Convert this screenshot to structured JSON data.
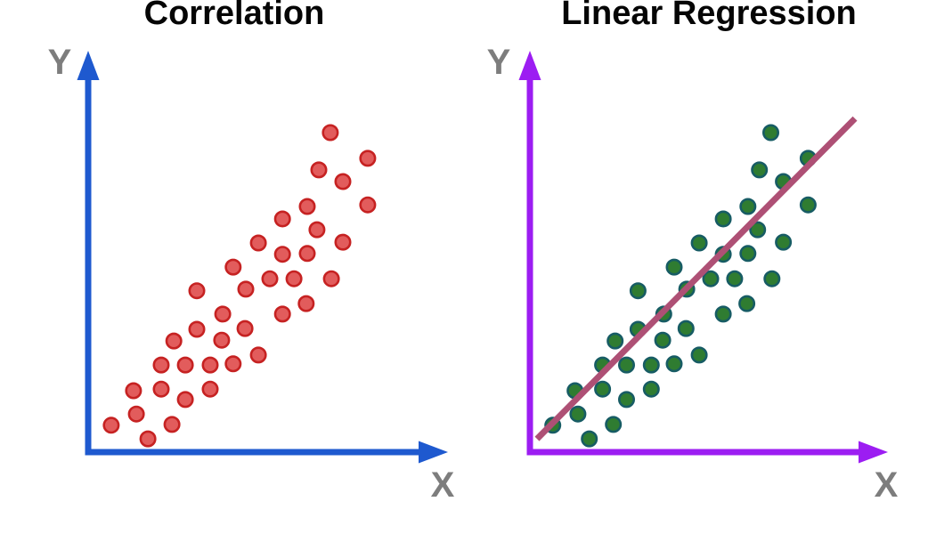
{
  "page": {
    "background_color": "#ffffff",
    "title_color": "#050505",
    "axis_label_color": "#7d7d7d"
  },
  "chart_data": [
    {
      "type": "scatter",
      "title": "Correlation",
      "xlabel": "X",
      "ylabel": "Y",
      "axis_ticks": "none",
      "units": "arbitrary 0-100 (axes have no tick labels)",
      "xlim": [
        0,
        100
      ],
      "ylim": [
        0,
        100
      ],
      "grid": false,
      "legend": "none",
      "colors": {
        "axis": "#1e59cf",
        "point_fill": "#e25c5c",
        "point_stroke": "#c62222",
        "label": "#7d7d7d"
      },
      "points": [
        [
          67.3,
          79.6
        ],
        [
          77.7,
          73.2
        ],
        [
          64.1,
          70.3
        ],
        [
          70.8,
          67.4
        ],
        [
          77.7,
          61.6
        ],
        [
          60.9,
          61.2
        ],
        [
          54.0,
          58.1
        ],
        [
          63.6,
          55.4
        ],
        [
          70.8,
          52.3
        ],
        [
          47.3,
          52.1
        ],
        [
          54.0,
          49.3
        ],
        [
          60.9,
          49.5
        ],
        [
          40.3,
          46.1
        ],
        [
          50.5,
          43.2
        ],
        [
          57.2,
          43.2
        ],
        [
          67.6,
          43.2
        ],
        [
          30.2,
          40.2
        ],
        [
          43.8,
          40.6
        ],
        [
          60.6,
          37.0
        ],
        [
          37.4,
          34.4
        ],
        [
          54.0,
          34.4
        ],
        [
          30.2,
          30.6
        ],
        [
          43.6,
          30.8
        ],
        [
          37.1,
          27.9
        ],
        [
          23.8,
          27.7
        ],
        [
          47.3,
          24.2
        ],
        [
          20.3,
          21.7
        ],
        [
          27.0,
          21.7
        ],
        [
          33.9,
          21.7
        ],
        [
          40.3,
          22.0
        ],
        [
          12.6,
          15.3
        ],
        [
          20.3,
          15.7
        ],
        [
          33.9,
          15.7
        ],
        [
          27.0,
          13.1
        ],
        [
          13.4,
          9.5
        ],
        [
          6.4,
          6.7
        ],
        [
          23.3,
          6.9
        ],
        [
          16.6,
          3.3
        ]
      ]
    },
    {
      "type": "scatter",
      "title": "Linear Regression",
      "xlabel": "X",
      "ylabel": "Y",
      "axis_ticks": "none",
      "units": "arbitrary 0-100 (axes have no tick labels)",
      "xlim": [
        0,
        100
      ],
      "ylim": [
        0,
        100
      ],
      "grid": false,
      "legend": "none",
      "colors": {
        "axis": "#9c1df2",
        "point_fill": "#2f7c31",
        "point_stroke": "#175c64",
        "label": "#7d7d7d"
      },
      "points": [
        [
          67.3,
          79.6
        ],
        [
          77.7,
          73.2
        ],
        [
          64.1,
          70.3
        ],
        [
          70.8,
          67.4
        ],
        [
          77.7,
          61.6
        ],
        [
          60.9,
          61.2
        ],
        [
          54.0,
          58.1
        ],
        [
          63.6,
          55.4
        ],
        [
          70.8,
          52.3
        ],
        [
          47.3,
          52.1
        ],
        [
          54.0,
          49.3
        ],
        [
          60.9,
          49.5
        ],
        [
          40.3,
          46.1
        ],
        [
          50.5,
          43.2
        ],
        [
          57.2,
          43.2
        ],
        [
          67.6,
          43.2
        ],
        [
          30.2,
          40.2
        ],
        [
          43.8,
          40.6
        ],
        [
          60.6,
          37.0
        ],
        [
          37.4,
          34.4
        ],
        [
          54.0,
          34.4
        ],
        [
          30.2,
          30.6
        ],
        [
          43.6,
          30.8
        ],
        [
          37.1,
          27.9
        ],
        [
          23.8,
          27.7
        ],
        [
          47.3,
          24.2
        ],
        [
          20.3,
          21.7
        ],
        [
          27.0,
          21.7
        ],
        [
          33.9,
          21.7
        ],
        [
          40.3,
          22.0
        ],
        [
          12.6,
          15.3
        ],
        [
          20.3,
          15.7
        ],
        [
          33.9,
          15.7
        ],
        [
          27.0,
          13.1
        ],
        [
          13.4,
          9.5
        ],
        [
          6.4,
          6.7
        ],
        [
          23.3,
          6.9
        ],
        [
          16.6,
          3.3
        ]
      ],
      "regression_line": {
        "from": [
          2.0,
          3.3
        ],
        "to": [
          90.8,
          83.1
        ],
        "color": "#ae5075"
      }
    }
  ]
}
